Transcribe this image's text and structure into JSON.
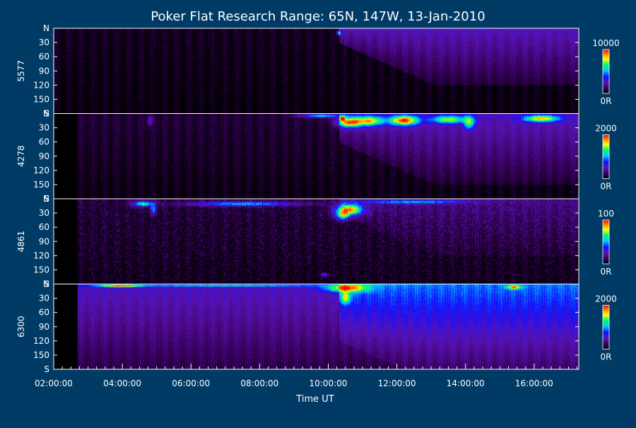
{
  "chart_data": {
    "type": "heatmap",
    "title": "Poker Flat Research Range: 65N, 147W, 13-Jan-2010",
    "xlabel": "Time UT",
    "x_ticks": [
      "02:00:00",
      "04:00:00",
      "06:00:00",
      "08:00:00",
      "10:00:00",
      "12:00:00",
      "14:00:00",
      "16:00:00"
    ],
    "xlim_hours": [
      2.0,
      17.3
    ],
    "y_ticks": [
      "N",
      "30",
      "60",
      "90",
      "120",
      "150",
      "S"
    ],
    "ylim_deg": [
      0,
      180
    ],
    "colorscale": [
      "#000000",
      "#3a0060",
      "#5a14b4",
      "#1010ff",
      "#00c8ff",
      "#00ff60",
      "#ffff00",
      "#ff8000",
      "#ff0000"
    ],
    "panels": [
      {
        "ylabel": "5577",
        "cbar_max": "10000",
        "cbar_min": "0R",
        "cbar_max_value": 10000,
        "data_start_hour": 2.0,
        "onset_hour": 10.3,
        "features": [
          {
            "t": 10.3,
            "lat": 9,
            "intensity": 0.55,
            "dt": 0.06,
            "dlat": 5
          }
        ],
        "background": {
          "base": 0.04,
          "post_onset": 0.22,
          "onset_lat": 30
        }
      },
      {
        "ylabel": "4278",
        "cbar_max": "2000",
        "cbar_min": "0R",
        "cbar_max_value": 2000,
        "data_start_hour": 2.7,
        "onset_hour": 10.3,
        "features": [
          {
            "t": 10.4,
            "lat": 10,
            "intensity": 0.95,
            "dt": 0.06,
            "dlat": 4
          },
          {
            "t": 10.6,
            "lat": 18,
            "intensity": 0.7,
            "dt": 0.35,
            "dlat": 10
          },
          {
            "t": 11.2,
            "lat": 15,
            "intensity": 0.6,
            "dt": 0.4,
            "dlat": 10
          },
          {
            "t": 12.2,
            "lat": 14,
            "intensity": 0.75,
            "dt": 0.4,
            "dlat": 10
          },
          {
            "t": 13.5,
            "lat": 12,
            "intensity": 0.5,
            "dt": 0.5,
            "dlat": 8
          },
          {
            "t": 14.1,
            "lat": 18,
            "intensity": 0.45,
            "dt": 0.15,
            "dlat": 14
          },
          {
            "t": 16.2,
            "lat": 10,
            "intensity": 0.6,
            "dt": 0.5,
            "dlat": 7
          },
          {
            "t": 9.8,
            "lat": 4,
            "intensity": 0.5,
            "dt": 0.6,
            "dlat": 4
          },
          {
            "t": 4.8,
            "lat": 14,
            "intensity": 0.25,
            "dt": 0.08,
            "dlat": 10
          }
        ],
        "background": {
          "base": 0.07,
          "post_onset": 0.2,
          "onset_lat": 60
        }
      },
      {
        "ylabel": "4861",
        "cbar_max": "100",
        "cbar_min": "0R",
        "cbar_max_value": 100,
        "data_start_hour": 2.7,
        "onset_hour": 10.3,
        "features": [
          {
            "t": 10.6,
            "lat": 22,
            "intensity": 0.75,
            "dt": 0.4,
            "dlat": 12
          },
          {
            "t": 10.4,
            "lat": 35,
            "intensity": 0.5,
            "dt": 0.2,
            "dlat": 10
          },
          {
            "t": 4.6,
            "lat": 10,
            "intensity": 0.55,
            "dt": 0.3,
            "dlat": 6
          },
          {
            "t": 4.9,
            "lat": 22,
            "intensity": 0.45,
            "dt": 0.08,
            "dlat": 10
          },
          {
            "t": 7.5,
            "lat": 10,
            "intensity": 0.45,
            "dt": 1.5,
            "dlat": 5
          },
          {
            "t": 12.5,
            "lat": 6,
            "intensity": 0.35,
            "dt": 1.5,
            "dlat": 4
          },
          {
            "t": 9.9,
            "lat": 160,
            "intensity": 0.4,
            "dt": 0.1,
            "dlat": 4
          }
        ],
        "background": {
          "base": 0.08,
          "post_onset": 0.1,
          "onset_lat": 30
        }
      },
      {
        "ylabel": "6300",
        "cbar_max": "2000",
        "cbar_min": "0R",
        "cbar_max_value": 2000,
        "data_start_hour": 2.7,
        "onset_hour": 10.3,
        "features": [
          {
            "t": 3.9,
            "lat": 3,
            "intensity": 0.6,
            "dt": 0.6,
            "dlat": 3
          },
          {
            "t": 10.5,
            "lat": 8,
            "intensity": 0.55,
            "dt": 0.6,
            "dlat": 8
          },
          {
            "t": 10.5,
            "lat": 28,
            "intensity": 0.4,
            "dt": 0.15,
            "dlat": 12
          },
          {
            "t": 15.4,
            "lat": 6,
            "intensity": 0.5,
            "dt": 0.2,
            "dlat": 4
          },
          {
            "t": 7.0,
            "lat": 3,
            "intensity": 0.35,
            "dt": 3.0,
            "dlat": 2
          }
        ],
        "background": {
          "base": 0.28,
          "post_onset": 0.18,
          "onset_lat": 120
        }
      }
    ]
  }
}
